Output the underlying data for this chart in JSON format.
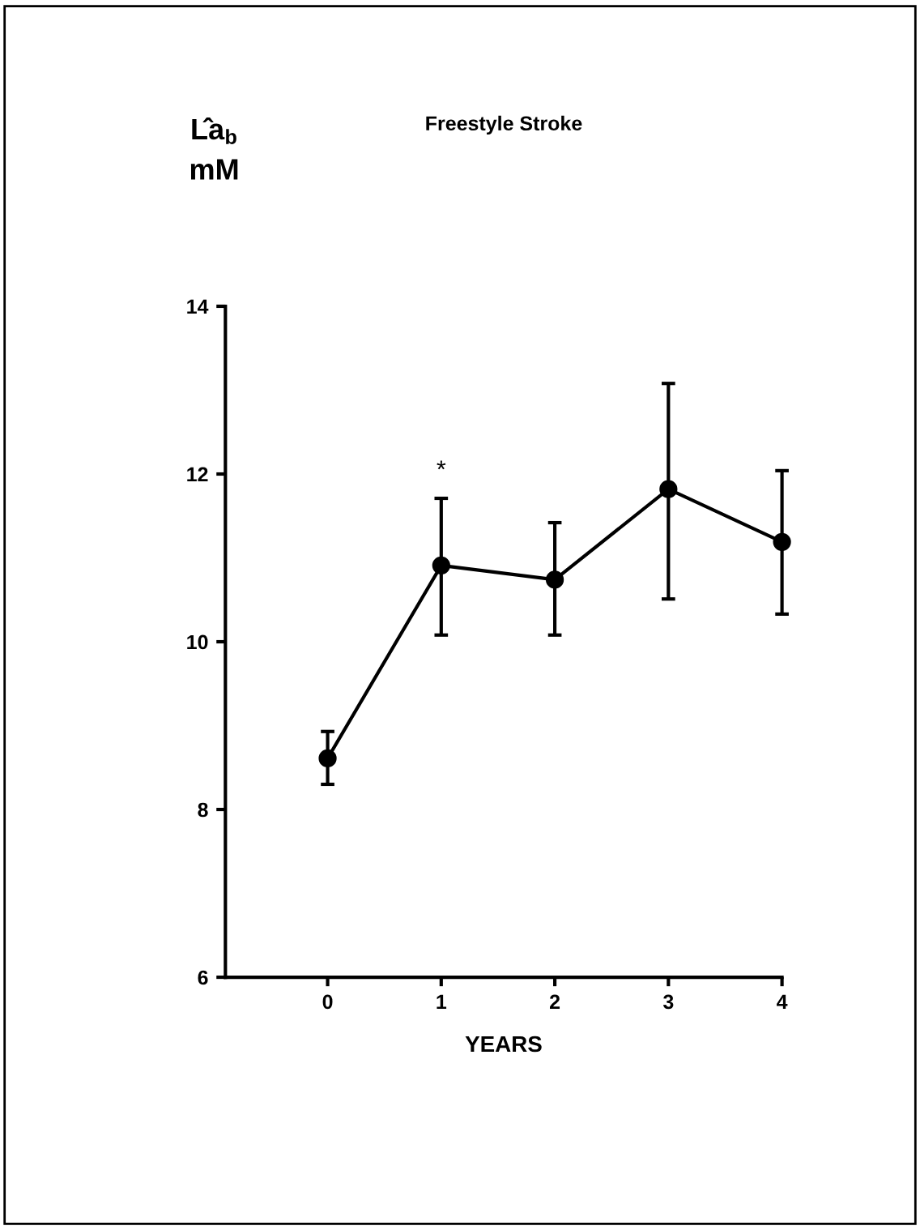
{
  "chart_data": {
    "type": "line",
    "title": "Freestyle Stroke",
    "xlabel": "YEARS",
    "ylabel": "L̂a$_{b}$\nmM",
    "x": [
      0,
      1,
      2,
      3,
      4
    ],
    "series": [
      {
        "color": "#000000",
        "values": [
          8.61,
          10.91,
          10.74,
          11.82,
          11.19
        ],
        "errors": [
          [
            8.3,
            8.93
          ],
          [
            10.08,
            11.71
          ],
          [
            10.08,
            11.42
          ],
          [
            10.51,
            13.08
          ],
          [
            10.33,
            12.04
          ]
        ]
      }
    ],
    "xlim": [
      -0.9,
      4
    ],
    "xticks": [
      0,
      1,
      2,
      3,
      4
    ],
    "ylim": [
      6,
      14
    ],
    "yticks": [
      6,
      8,
      10,
      12,
      14
    ],
    "annotations": [
      {
        "text": "*",
        "x": 1,
        "y": 11.71
      }
    ],
    "marker": "circle",
    "line_style": "solid",
    "grid": false,
    "legend": false
  }
}
